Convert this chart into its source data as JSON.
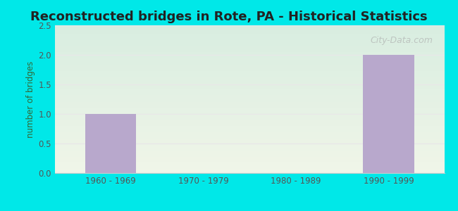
{
  "title": "Reconstructed bridges in Rote, PA - Historical Statistics",
  "categories": [
    "1960 - 1969",
    "1970 - 1979",
    "1980 - 1989",
    "1990 - 1999"
  ],
  "values": [
    1,
    0,
    0,
    2
  ],
  "bar_color": "#b8a8cc",
  "ylabel": "number of bridges",
  "ylim": [
    0,
    2.5
  ],
  "yticks": [
    0,
    0.5,
    1,
    1.5,
    2,
    2.5
  ],
  "background_outer": "#00e8e8",
  "background_inner_top": "#f0f5e8",
  "background_inner_bottom": "#d8ede0",
  "grid_color": "#e8e8e8",
  "title_fontsize": 13,
  "axis_label_color": "#336633",
  "tick_label_color": "#555555",
  "watermark": "City-Data.com"
}
